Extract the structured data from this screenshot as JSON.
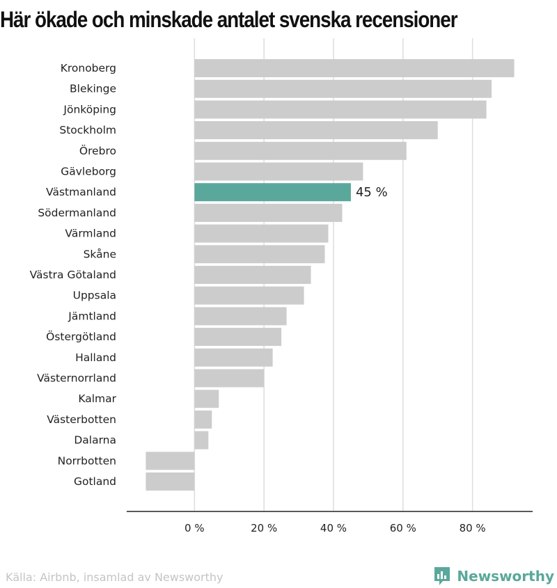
{
  "title": "Här ökade och minskade antalet svenska recensioner",
  "source": "Källa: Airbnb, insamlad av Newsworthy",
  "brand": {
    "name": "Newsworthy",
    "icon": "newsworthy-logo-icon"
  },
  "colors": {
    "bar": "#cccccc",
    "highlight": "#5aa89b",
    "grid": "#dddddd",
    "axis": "#222222",
    "text": "#222222"
  },
  "chart_data": {
    "type": "bar",
    "orientation": "horizontal",
    "categories": [
      "Kronoberg",
      "Blekinge",
      "Jönköping",
      "Stockholm",
      "Örebro",
      "Gävleborg",
      "Västmanland",
      "Södermanland",
      "Värmland",
      "Skåne",
      "Västra Götaland",
      "Uppsala",
      "Jämtland",
      "Östergötland",
      "Halland",
      "Västernorrland",
      "Kalmar",
      "Västerbotten",
      "Dalarna",
      "Norrbotten",
      "Gotland"
    ],
    "values": [
      92,
      85.5,
      84,
      70,
      61,
      48.5,
      45,
      42.5,
      38.5,
      37.5,
      33.5,
      31.5,
      26.5,
      25,
      22.5,
      20,
      7,
      5,
      4,
      -14,
      -14
    ],
    "highlight": "Västmanland",
    "highlight_label": "45 %",
    "xticks": [
      0,
      20,
      40,
      60,
      80
    ],
    "xtick_labels": [
      "0 %",
      "20 %",
      "40 %",
      "60 %",
      "80 %"
    ],
    "xlim": [
      -19.5,
      97.3
    ],
    "grid": true
  }
}
